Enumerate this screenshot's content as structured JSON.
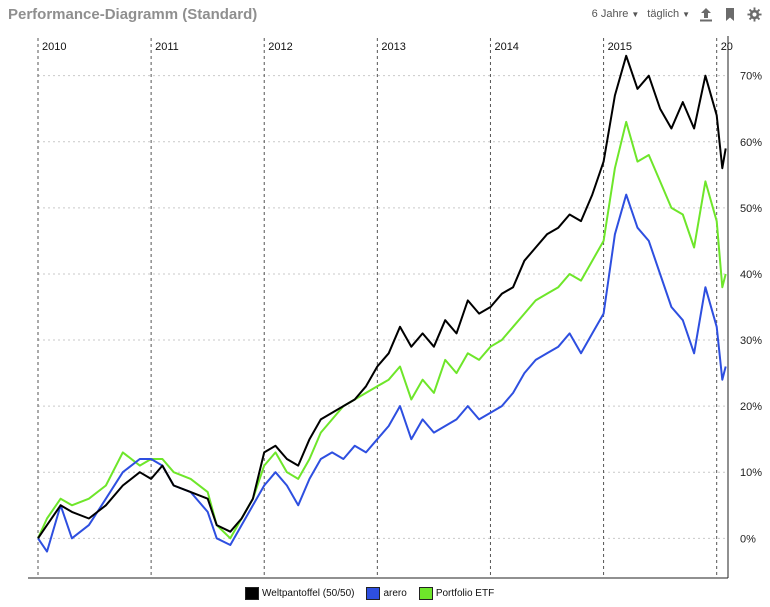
{
  "header": {
    "title": "Performance-Diagramm (Standard)",
    "period_label": "6 Jahre",
    "interval_label": "täglich",
    "icons": [
      "export-icon",
      "bookmark-icon",
      "gear-icon"
    ]
  },
  "chart_data": {
    "type": "line",
    "x_tick_labels": [
      "2010",
      "2011",
      "2012",
      "2013",
      "2014",
      "2015",
      "20"
    ],
    "x_range": [
      2010.0,
      2016.1
    ],
    "y_range": [
      -6,
      76
    ],
    "y_ticks": [
      0,
      10,
      20,
      30,
      40,
      50,
      60,
      70
    ],
    "y_tick_labels": [
      "0%",
      "10%",
      "20%",
      "30%",
      "40%",
      "50%",
      "60%",
      "70%"
    ],
    "grid": "vertical dashed lines at year boundaries, horizontal dotted lines at y ticks",
    "legend_position": "bottom",
    "series": [
      {
        "name": "Weltpantoffel (50/50)",
        "color": "#000000",
        "points": [
          [
            2010.0,
            0
          ],
          [
            2010.08,
            2
          ],
          [
            2010.2,
            5
          ],
          [
            2010.3,
            4
          ],
          [
            2010.45,
            3
          ],
          [
            2010.6,
            5
          ],
          [
            2010.75,
            8
          ],
          [
            2010.9,
            10
          ],
          [
            2011.0,
            9
          ],
          [
            2011.1,
            11
          ],
          [
            2011.2,
            8
          ],
          [
            2011.35,
            7
          ],
          [
            2011.5,
            6
          ],
          [
            2011.58,
            2
          ],
          [
            2011.7,
            1
          ],
          [
            2011.8,
            3
          ],
          [
            2011.9,
            6
          ],
          [
            2012.0,
            13
          ],
          [
            2012.1,
            14
          ],
          [
            2012.2,
            12
          ],
          [
            2012.3,
            11
          ],
          [
            2012.4,
            15
          ],
          [
            2012.5,
            18
          ],
          [
            2012.6,
            19
          ],
          [
            2012.7,
            20
          ],
          [
            2012.8,
            21
          ],
          [
            2012.9,
            23
          ],
          [
            2013.0,
            26
          ],
          [
            2013.1,
            28
          ],
          [
            2013.2,
            32
          ],
          [
            2013.3,
            29
          ],
          [
            2013.4,
            31
          ],
          [
            2013.5,
            29
          ],
          [
            2013.6,
            33
          ],
          [
            2013.7,
            31
          ],
          [
            2013.8,
            36
          ],
          [
            2013.9,
            34
          ],
          [
            2014.0,
            35
          ],
          [
            2014.1,
            37
          ],
          [
            2014.2,
            38
          ],
          [
            2014.3,
            42
          ],
          [
            2014.4,
            44
          ],
          [
            2014.5,
            46
          ],
          [
            2014.6,
            47
          ],
          [
            2014.7,
            49
          ],
          [
            2014.8,
            48
          ],
          [
            2014.9,
            52
          ],
          [
            2015.0,
            57
          ],
          [
            2015.1,
            67
          ],
          [
            2015.2,
            73
          ],
          [
            2015.3,
            68
          ],
          [
            2015.4,
            70
          ],
          [
            2015.5,
            65
          ],
          [
            2015.6,
            62
          ],
          [
            2015.7,
            66
          ],
          [
            2015.8,
            62
          ],
          [
            2015.9,
            70
          ],
          [
            2016.0,
            64
          ],
          [
            2016.05,
            56
          ],
          [
            2016.08,
            59
          ]
        ]
      },
      {
        "name": "arero",
        "color": "#2e4fe0",
        "points": [
          [
            2010.0,
            0
          ],
          [
            2010.08,
            -2
          ],
          [
            2010.2,
            5
          ],
          [
            2010.3,
            0
          ],
          [
            2010.45,
            2
          ],
          [
            2010.6,
            6
          ],
          [
            2010.75,
            10
          ],
          [
            2010.9,
            12
          ],
          [
            2011.0,
            12
          ],
          [
            2011.1,
            11
          ],
          [
            2011.2,
            8
          ],
          [
            2011.35,
            7
          ],
          [
            2011.5,
            4
          ],
          [
            2011.58,
            0
          ],
          [
            2011.7,
            -1
          ],
          [
            2011.8,
            2
          ],
          [
            2011.9,
            5
          ],
          [
            2012.0,
            8
          ],
          [
            2012.1,
            10
          ],
          [
            2012.2,
            8
          ],
          [
            2012.3,
            5
          ],
          [
            2012.4,
            9
          ],
          [
            2012.5,
            12
          ],
          [
            2012.6,
            13
          ],
          [
            2012.7,
            12
          ],
          [
            2012.8,
            14
          ],
          [
            2012.9,
            13
          ],
          [
            2013.0,
            15
          ],
          [
            2013.1,
            17
          ],
          [
            2013.2,
            20
          ],
          [
            2013.3,
            15
          ],
          [
            2013.4,
            18
          ],
          [
            2013.5,
            16
          ],
          [
            2013.6,
            17
          ],
          [
            2013.7,
            18
          ],
          [
            2013.8,
            20
          ],
          [
            2013.9,
            18
          ],
          [
            2014.0,
            19
          ],
          [
            2014.1,
            20
          ],
          [
            2014.2,
            22
          ],
          [
            2014.3,
            25
          ],
          [
            2014.4,
            27
          ],
          [
            2014.5,
            28
          ],
          [
            2014.6,
            29
          ],
          [
            2014.7,
            31
          ],
          [
            2014.8,
            28
          ],
          [
            2014.9,
            31
          ],
          [
            2015.0,
            34
          ],
          [
            2015.1,
            46
          ],
          [
            2015.2,
            52
          ],
          [
            2015.3,
            47
          ],
          [
            2015.4,
            45
          ],
          [
            2015.5,
            40
          ],
          [
            2015.6,
            35
          ],
          [
            2015.7,
            33
          ],
          [
            2015.8,
            28
          ],
          [
            2015.9,
            38
          ],
          [
            2016.0,
            32
          ],
          [
            2016.05,
            24
          ],
          [
            2016.08,
            26
          ]
        ]
      },
      {
        "name": "Portfolio ETF",
        "color": "#6ee62a",
        "points": [
          [
            2010.0,
            0
          ],
          [
            2010.08,
            3
          ],
          [
            2010.2,
            6
          ],
          [
            2010.3,
            5
          ],
          [
            2010.45,
            6
          ],
          [
            2010.6,
            8
          ],
          [
            2010.75,
            13
          ],
          [
            2010.9,
            11
          ],
          [
            2011.0,
            12
          ],
          [
            2011.1,
            12
          ],
          [
            2011.2,
            10
          ],
          [
            2011.35,
            9
          ],
          [
            2011.5,
            7
          ],
          [
            2011.58,
            2
          ],
          [
            2011.7,
            0
          ],
          [
            2011.8,
            3
          ],
          [
            2011.9,
            6
          ],
          [
            2012.0,
            11
          ],
          [
            2012.1,
            13
          ],
          [
            2012.2,
            10
          ],
          [
            2012.3,
            9
          ],
          [
            2012.4,
            12
          ],
          [
            2012.5,
            16
          ],
          [
            2012.6,
            18
          ],
          [
            2012.7,
            20
          ],
          [
            2012.8,
            21
          ],
          [
            2012.9,
            22
          ],
          [
            2013.0,
            23
          ],
          [
            2013.1,
            24
          ],
          [
            2013.2,
            26
          ],
          [
            2013.3,
            21
          ],
          [
            2013.4,
            24
          ],
          [
            2013.5,
            22
          ],
          [
            2013.6,
            27
          ],
          [
            2013.7,
            25
          ],
          [
            2013.8,
            28
          ],
          [
            2013.9,
            27
          ],
          [
            2014.0,
            29
          ],
          [
            2014.1,
            30
          ],
          [
            2014.2,
            32
          ],
          [
            2014.3,
            34
          ],
          [
            2014.4,
            36
          ],
          [
            2014.5,
            37
          ],
          [
            2014.6,
            38
          ],
          [
            2014.7,
            40
          ],
          [
            2014.8,
            39
          ],
          [
            2014.9,
            42
          ],
          [
            2015.0,
            45
          ],
          [
            2015.1,
            56
          ],
          [
            2015.2,
            63
          ],
          [
            2015.3,
            57
          ],
          [
            2015.4,
            58
          ],
          [
            2015.5,
            54
          ],
          [
            2015.6,
            50
          ],
          [
            2015.7,
            49
          ],
          [
            2015.8,
            44
          ],
          [
            2015.9,
            54
          ],
          [
            2016.0,
            48
          ],
          [
            2016.05,
            38
          ],
          [
            2016.08,
            40
          ]
        ]
      }
    ]
  }
}
